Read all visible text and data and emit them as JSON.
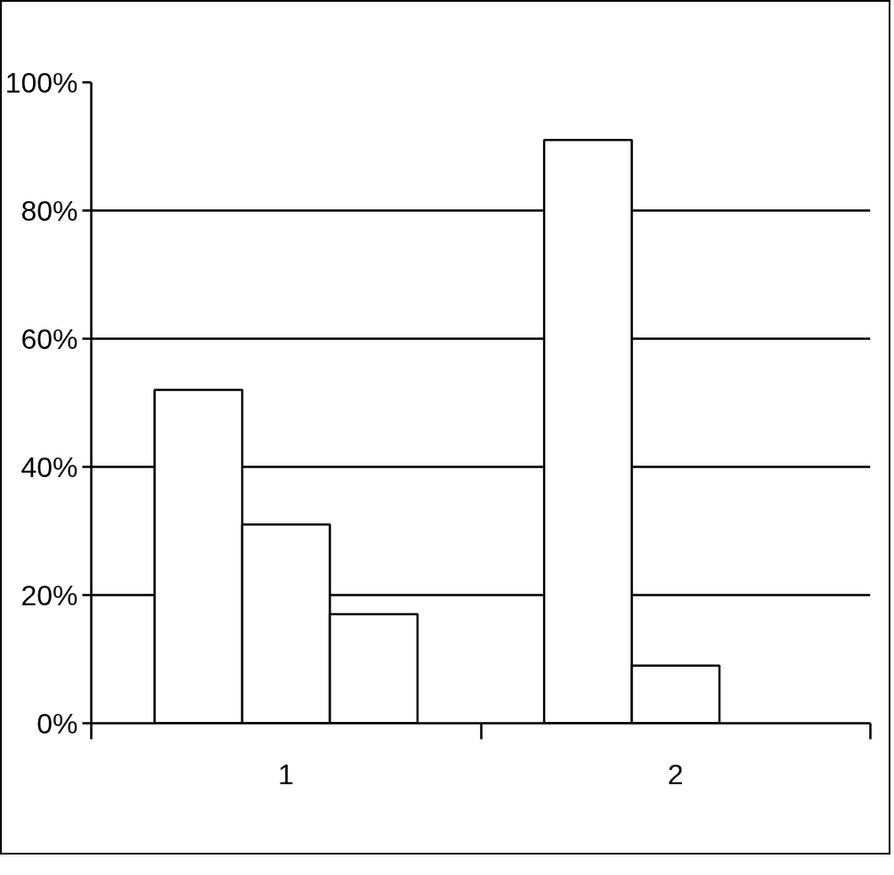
{
  "chart_data": {
    "type": "bar",
    "categories": [
      "1",
      "2"
    ],
    "series": [
      {
        "color": "#ffffff",
        "values": [
          52,
          91
        ]
      },
      {
        "color": "#ffffff",
        "values": [
          31,
          9
        ]
      },
      {
        "color": "#ffffff",
        "values": [
          17,
          null
        ]
      }
    ],
    "ylim": [
      0,
      100
    ],
    "yticks": [
      {
        "value": 0,
        "label": "0%"
      },
      {
        "value": 20,
        "label": "20%"
      },
      {
        "value": 40,
        "label": "40%"
      },
      {
        "value": 60,
        "label": "60%"
      },
      {
        "value": 80,
        "label": "80%"
      },
      {
        "value": 100,
        "label": "100%"
      }
    ],
    "grid": "y"
  }
}
